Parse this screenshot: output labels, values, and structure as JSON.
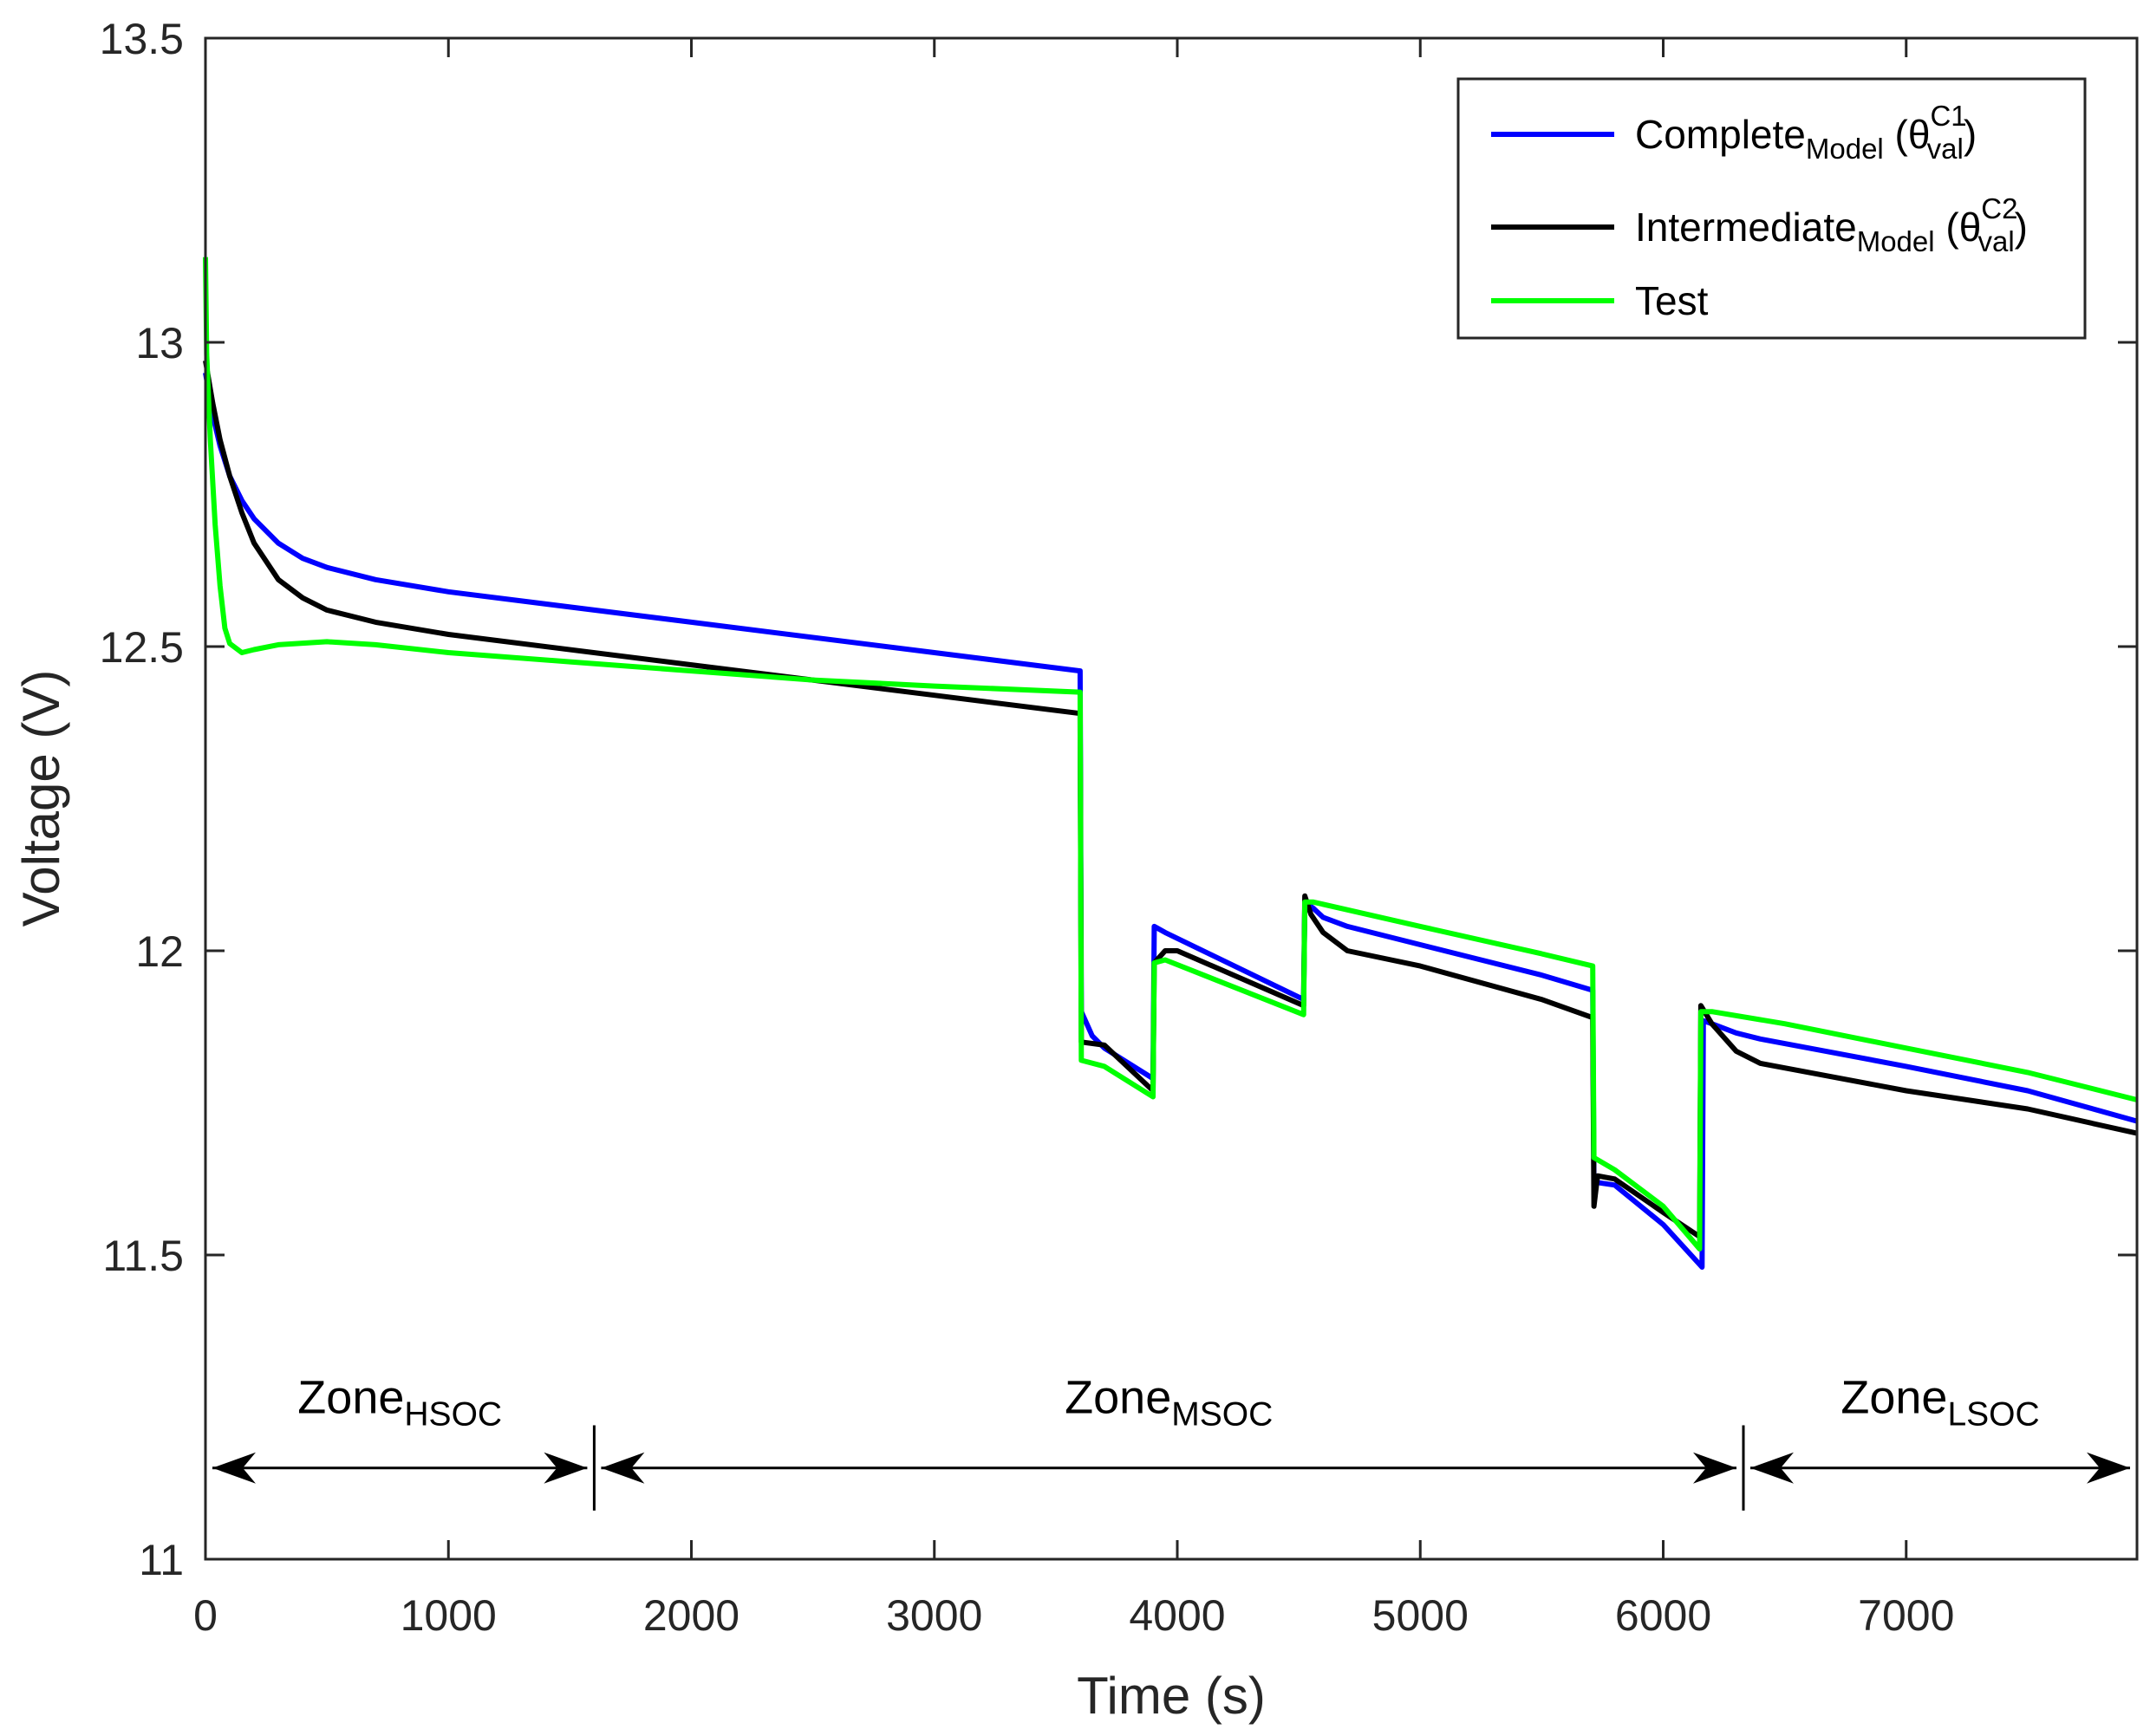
{
  "chart_data": {
    "type": "line",
    "title": "",
    "xlabel": "Time (s)",
    "ylabel": "Voltage (V)",
    "xlim": [
      0,
      7950
    ],
    "ylim": [
      11,
      13.5
    ],
    "xticks": [
      0,
      1000,
      2000,
      3000,
      4000,
      5000,
      6000,
      7000
    ],
    "yticks": [
      11,
      11.5,
      12,
      12.5,
      13,
      13.5
    ],
    "xtick_labels": [
      "0",
      "1000",
      "2000",
      "3000",
      "4000",
      "5000",
      "6000",
      "7000"
    ],
    "ytick_labels": [
      "11",
      "11.5",
      "12",
      "12.5",
      "13",
      "13.5"
    ],
    "legend_position": "top-right",
    "series": [
      {
        "name": "Complete",
        "name_sub": "Model",
        "param": "(θ",
        "param_sup": "C1",
        "param_sub": "val",
        "param_close": ")",
        "color": "#0000ff",
        "points": [
          [
            0,
            12.95
          ],
          [
            30,
            12.88
          ],
          [
            60,
            12.83
          ],
          [
            100,
            12.78
          ],
          [
            150,
            12.74
          ],
          [
            200,
            12.71
          ],
          [
            300,
            12.67
          ],
          [
            400,
            12.645
          ],
          [
            500,
            12.63
          ],
          [
            700,
            12.61
          ],
          [
            1000,
            12.59
          ],
          [
            2000,
            12.54
          ],
          [
            3000,
            12.49
          ],
          [
            3600,
            12.46
          ],
          [
            3605,
            11.9
          ],
          [
            3650,
            11.86
          ],
          [
            3700,
            11.84
          ],
          [
            3900,
            11.79
          ],
          [
            3905,
            12.04
          ],
          [
            3950,
            12.03
          ],
          [
            4520,
            11.92
          ],
          [
            4525,
            12.08
          ],
          [
            4560,
            12.07
          ],
          [
            4600,
            12.055
          ],
          [
            4700,
            12.04
          ],
          [
            5000,
            12.01
          ],
          [
            5500,
            11.96
          ],
          [
            5710,
            11.935
          ],
          [
            5715,
            11.62
          ],
          [
            5800,
            11.615
          ],
          [
            6000,
            11.55
          ],
          [
            6160,
            11.48
          ],
          [
            6165,
            11.885
          ],
          [
            6200,
            11.88
          ],
          [
            6300,
            11.865
          ],
          [
            6400,
            11.855
          ],
          [
            6600,
            11.84
          ],
          [
            7000,
            11.81
          ],
          [
            7500,
            11.77
          ],
          [
            7950,
            11.72
          ]
        ]
      },
      {
        "name": "Intermediate",
        "name_sub": "Model",
        "param": "(θ",
        "param_sup": "C2",
        "param_sub": "val",
        "param_close": ")",
        "color": "#000000",
        "points": [
          [
            0,
            12.97
          ],
          [
            30,
            12.9
          ],
          [
            60,
            12.84
          ],
          [
            100,
            12.78
          ],
          [
            150,
            12.72
          ],
          [
            200,
            12.67
          ],
          [
            300,
            12.61
          ],
          [
            400,
            12.58
          ],
          [
            500,
            12.56
          ],
          [
            700,
            12.54
          ],
          [
            1000,
            12.52
          ],
          [
            2000,
            12.47
          ],
          [
            3000,
            12.42
          ],
          [
            3600,
            12.39
          ],
          [
            3605,
            11.85
          ],
          [
            3700,
            11.845
          ],
          [
            3900,
            11.77
          ],
          [
            3905,
            11.98
          ],
          [
            3950,
            12.0
          ],
          [
            4000,
            12.0
          ],
          [
            4520,
            11.91
          ],
          [
            4525,
            12.09
          ],
          [
            4550,
            12.06
          ],
          [
            4600,
            12.03
          ],
          [
            4700,
            12.0
          ],
          [
            5000,
            11.975
          ],
          [
            5500,
            11.92
          ],
          [
            5710,
            11.89
          ],
          [
            5715,
            11.58
          ],
          [
            5730,
            11.63
          ],
          [
            5800,
            11.625
          ],
          [
            6000,
            11.57
          ],
          [
            6150,
            11.53
          ],
          [
            6155,
            11.91
          ],
          [
            6200,
            11.88
          ],
          [
            6300,
            11.835
          ],
          [
            6400,
            11.815
          ],
          [
            6600,
            11.8
          ],
          [
            7000,
            11.77
          ],
          [
            7500,
            11.74
          ],
          [
            7950,
            11.7
          ]
        ]
      },
      {
        "name": "Test",
        "name_sub": "",
        "param": "",
        "param_sup": "",
        "param_sub": "",
        "param_close": "",
        "color": "#00ff00",
        "points": [
          [
            0,
            13.14
          ],
          [
            5,
            12.98
          ],
          [
            20,
            12.84
          ],
          [
            40,
            12.7
          ],
          [
            60,
            12.6
          ],
          [
            80,
            12.53
          ],
          [
            100,
            12.505
          ],
          [
            150,
            12.49
          ],
          [
            200,
            12.495
          ],
          [
            300,
            12.503
          ],
          [
            500,
            12.508
          ],
          [
            700,
            12.503
          ],
          [
            1000,
            12.49
          ],
          [
            1500,
            12.475
          ],
          [
            2000,
            12.46
          ],
          [
            2500,
            12.445
          ],
          [
            3000,
            12.435
          ],
          [
            3600,
            12.425
          ],
          [
            3605,
            11.82
          ],
          [
            3700,
            11.81
          ],
          [
            3900,
            11.76
          ],
          [
            3905,
            11.98
          ],
          [
            3950,
            11.985
          ],
          [
            4520,
            11.895
          ],
          [
            4525,
            12.08
          ],
          [
            4560,
            12.08
          ],
          [
            5000,
            12.04
          ],
          [
            5500,
            11.995
          ],
          [
            5710,
            11.975
          ],
          [
            5715,
            11.66
          ],
          [
            5800,
            11.64
          ],
          [
            6000,
            11.58
          ],
          [
            6150,
            11.51
          ],
          [
            6155,
            11.9
          ],
          [
            6200,
            11.9
          ],
          [
            6500,
            11.88
          ],
          [
            7000,
            11.84
          ],
          [
            7500,
            11.8
          ],
          [
            7950,
            11.755
          ]
        ]
      }
    ],
    "annotations": [
      {
        "label": "Zone",
        "sub": "HSOC",
        "from": 0,
        "to": 1600,
        "y": 11.15,
        "label_x": 800,
        "label_y": 11.24
      },
      {
        "label": "Zone",
        "sub": "MSOC",
        "from": 1600,
        "to": 6330,
        "y": 11.15,
        "label_x": 3965,
        "label_y": 11.24
      },
      {
        "label": "Zone",
        "sub": "LSOC",
        "from": 6330,
        "to": 7950,
        "y": 11.15,
        "label_x": 7140,
        "label_y": 11.24
      }
    ],
    "dividers": [
      1600,
      6330
    ]
  }
}
